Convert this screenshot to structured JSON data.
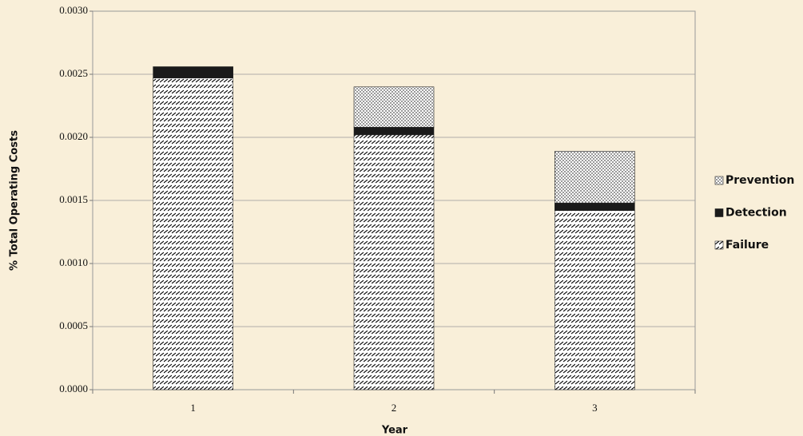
{
  "chart_data": {
    "type": "stacked_bar",
    "x_label": "Year",
    "y_label": "% Total Operating Costs",
    "categories": [
      "1",
      "2",
      "3"
    ],
    "series": [
      {
        "name": "Prevention",
        "color": "#000000",
        "pattern": "dots",
        "values": [
          0,
          0.00032,
          0.00041
        ]
      },
      {
        "name": "Detection",
        "color": "#1a1a1a",
        "pattern": "solid",
        "values": [
          9e-05,
          6e-05,
          6e-05
        ]
      },
      {
        "name": "Failure",
        "color": "#000000",
        "pattern": "hatch",
        "values": [
          0.00247,
          0.00202,
          0.00142
        ]
      }
    ],
    "ylim": [
      0,
      0.003
    ],
    "yticks": [
      {
        "value": 0,
        "label": "0.0000"
      },
      {
        "value": 0.0005,
        "label": "0.0005"
      },
      {
        "value": 0.001,
        "label": "0.0010"
      },
      {
        "value": 0.0015,
        "label": "0.0015"
      },
      {
        "value": 0.002,
        "label": "0.0020"
      },
      {
        "value": 0.0025,
        "label": "0.0025"
      },
      {
        "value": 0.003,
        "label": "0.0030"
      }
    ],
    "grid": true,
    "legend": "right"
  }
}
